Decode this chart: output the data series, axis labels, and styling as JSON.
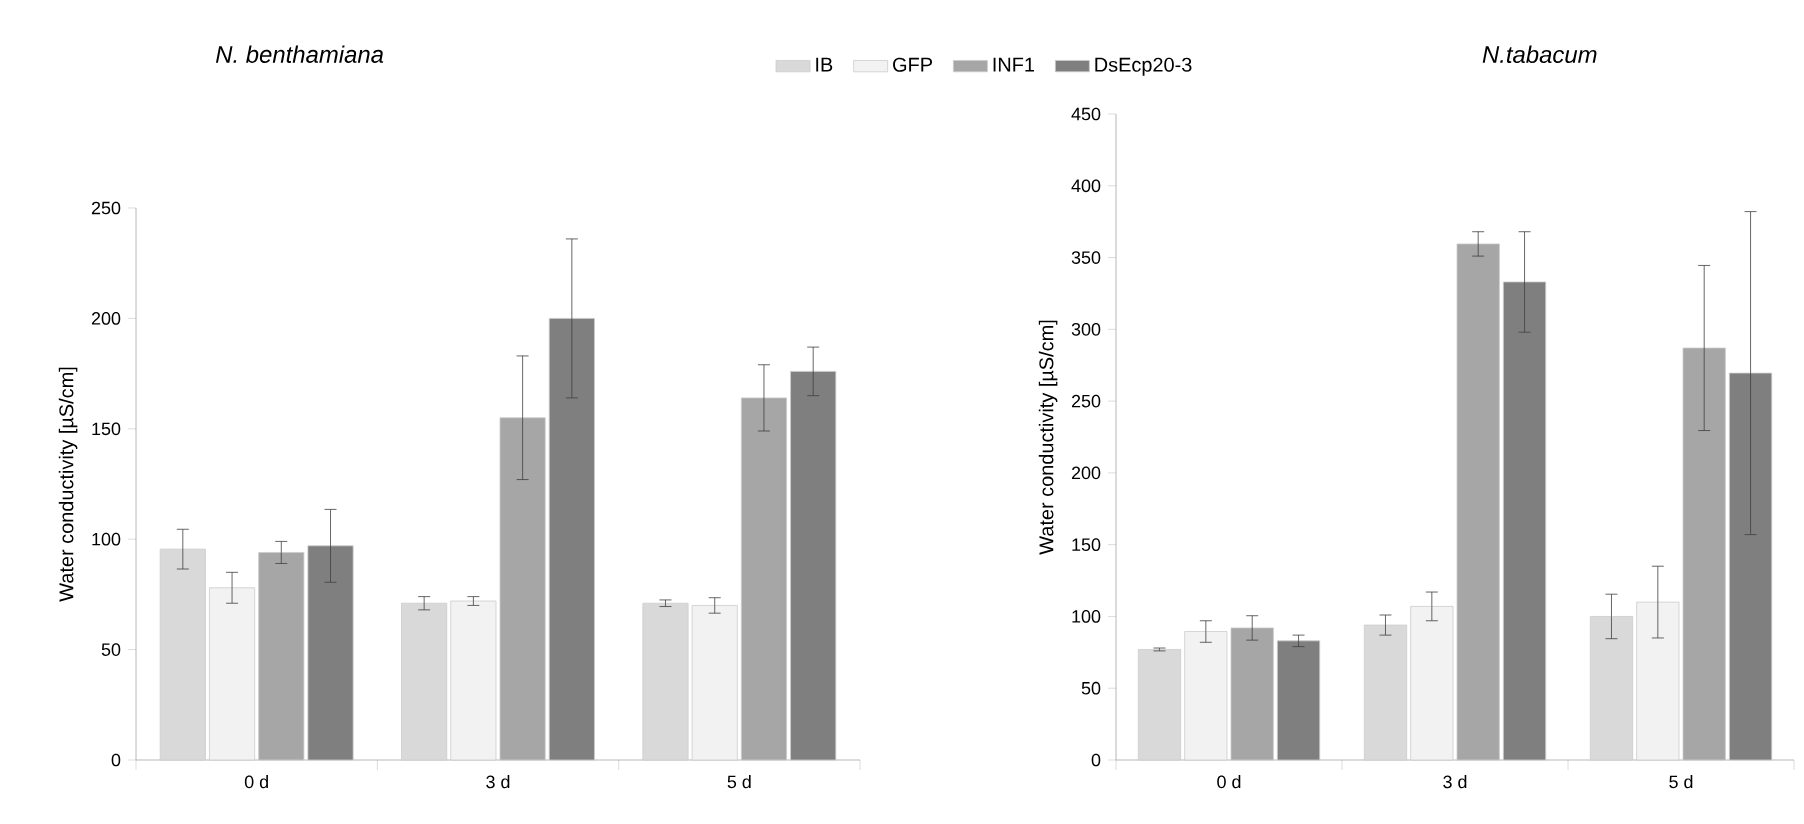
{
  "chart_data": [
    {
      "type": "bar",
      "title": "N. benthamiana",
      "ylabel": "Water conductivity [µS/cm]",
      "categories": [
        "0 d",
        "3 d",
        "5 d"
      ],
      "ylim": [
        0,
        250
      ],
      "yticks": [
        0,
        50,
        100,
        150,
        200,
        250
      ],
      "legend": "top",
      "series": [
        {
          "name": "IB",
          "color": "#d9d9d9",
          "values": [
            95.5,
            71,
            71
          ],
          "errors": [
            9,
            3,
            1.5
          ]
        },
        {
          "name": "GFP",
          "color": "#f2f2f2",
          "values": [
            78,
            72,
            70
          ],
          "errors": [
            7,
            2,
            3.5
          ]
        },
        {
          "name": "INF1",
          "color": "#a6a6a6",
          "values": [
            94,
            155,
            164
          ],
          "errors": [
            5,
            28,
            15
          ]
        },
        {
          "name": "DsEcp20-3",
          "color": "#7f7f7f",
          "values": [
            97,
            200,
            176
          ],
          "errors": [
            16.5,
            36,
            11
          ]
        }
      ]
    },
    {
      "type": "bar",
      "title": "N.tabacum",
      "ylabel": "Water conductivity [µS/cm]",
      "categories": [
        "0 d",
        "3 d",
        "5 d"
      ],
      "ylim": [
        0,
        450
      ],
      "yticks": [
        0,
        50,
        100,
        150,
        200,
        250,
        300,
        350,
        400,
        450
      ],
      "series": [
        {
          "color": "#d9d9d9",
          "values": [
            77,
            94,
            100
          ],
          "errors": [
            1,
            7,
            15.5
          ]
        },
        {
          "color": "#f2f2f2",
          "values": [
            89.5,
            107,
            110
          ],
          "errors": [
            7.5,
            10,
            25
          ]
        },
        {
          "color": "#a6a6a6",
          "values": [
            92,
            359.5,
            287
          ],
          "errors": [
            8.5,
            8.5,
            57.5
          ]
        },
        {
          "color": "#7f7f7f",
          "values": [
            83,
            333,
            269.5
          ],
          "errors": [
            4,
            35,
            112.5
          ]
        }
      ]
    }
  ]
}
